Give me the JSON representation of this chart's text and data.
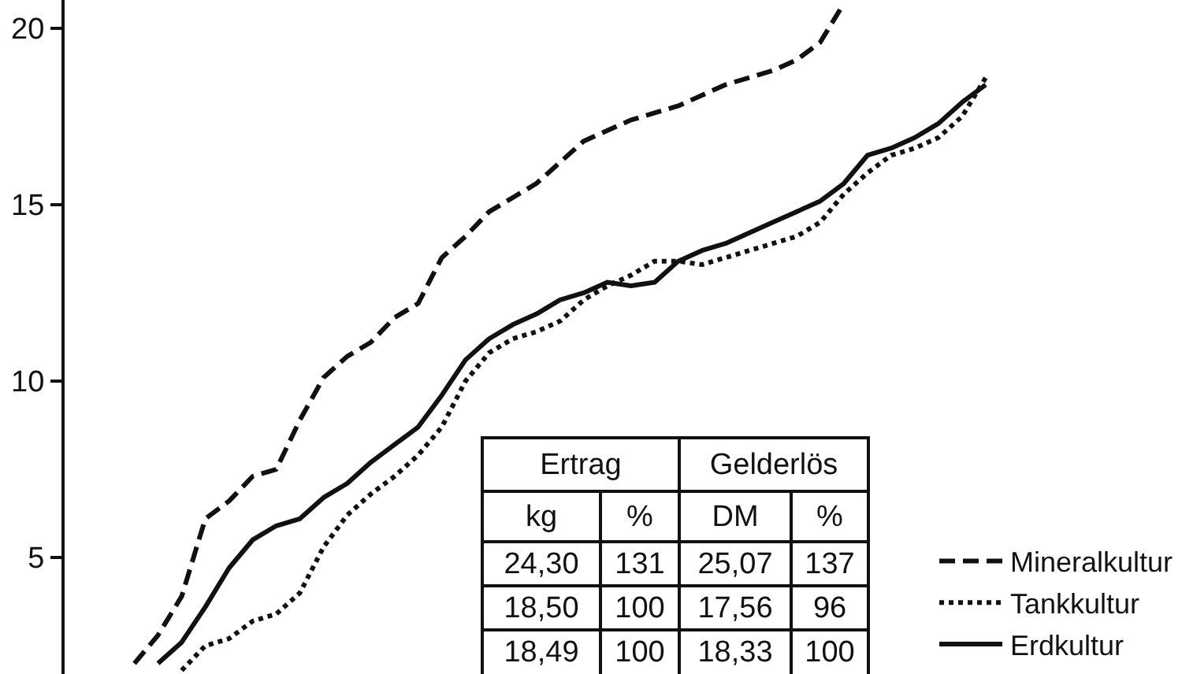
{
  "chart_data": {
    "type": "line",
    "categories": [
      null,
      null,
      null,
      null,
      null,
      null,
      null,
      null,
      null,
      null,
      null,
      null,
      null,
      null,
      null,
      null,
      null,
      null,
      null,
      null,
      null,
      null,
      null,
      null,
      null,
      null,
      null,
      null,
      null,
      null,
      null,
      null,
      null,
      null,
      null,
      null,
      null,
      null,
      null
    ],
    "series": [
      {
        "name": "Mineralkultur",
        "color": "#111111",
        "line_style": "dashed",
        "values": [
          null,
          2.0,
          2.8,
          3.9,
          6.1,
          6.6,
          7.3,
          7.5,
          8.9,
          10.1,
          10.7,
          11.1,
          11.8,
          12.2,
          13.5,
          14.1,
          14.8,
          15.2,
          15.6,
          16.2,
          16.8,
          17.1,
          17.4,
          17.6,
          17.8,
          18.1,
          18.4,
          18.6,
          18.8,
          19.1,
          19.6,
          20.7,
          null,
          null,
          null,
          null,
          null,
          null,
          null
        ]
      },
      {
        "name": "Tankkultur",
        "color": "#111111",
        "line_style": "dotted",
        "values": [
          null,
          null,
          null,
          1.8,
          2.5,
          2.7,
          3.2,
          3.4,
          4.0,
          5.3,
          6.2,
          6.8,
          7.3,
          7.9,
          8.7,
          10.0,
          10.8,
          11.2,
          11.4,
          11.7,
          12.3,
          12.7,
          13.0,
          13.4,
          13.4,
          13.3,
          13.5,
          13.7,
          13.9,
          14.1,
          14.5,
          15.3,
          15.9,
          16.4,
          16.6,
          16.9,
          17.5,
          18.6,
          null
        ]
      },
      {
        "name": "Erdkultur",
        "color": "#111111",
        "line_style": "solid",
        "values": [
          null,
          null,
          2.0,
          2.6,
          3.6,
          4.7,
          5.5,
          5.9,
          6.1,
          6.7,
          7.1,
          7.7,
          8.2,
          8.7,
          9.6,
          10.6,
          11.2,
          11.6,
          11.9,
          12.3,
          12.5,
          12.8,
          12.7,
          12.8,
          13.4,
          13.7,
          13.9,
          14.2,
          14.5,
          14.8,
          15.1,
          15.6,
          16.4,
          16.6,
          16.9,
          17.3,
          17.9,
          18.4,
          null
        ]
      }
    ],
    "ylim": [
      1.7,
      20.8
    ],
    "yticks": [
      5,
      10,
      15,
      20
    ],
    "tick_labels": "y",
    "grid": false,
    "legend": "bottom right",
    "annotations": [
      "Ertrag",
      "Gelderlös",
      "kg",
      "%",
      "DM",
      "%",
      "24,30",
      "131",
      "25,07",
      "137",
      "18,50",
      "100",
      "17,56",
      "96",
      "18,49",
      "100",
      "18,33",
      "100"
    ]
  }
}
